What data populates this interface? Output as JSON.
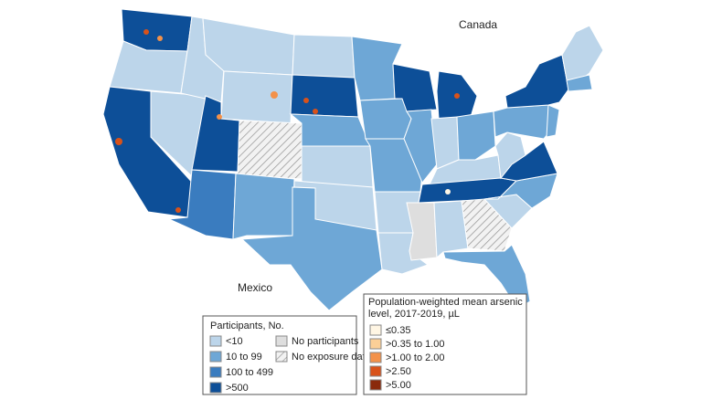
{
  "map": {
    "labels": {
      "canada": "Canada",
      "mexico": "Mexico"
    },
    "participants_legend": {
      "title": "Participants, No.",
      "items": [
        {
          "label": "<10",
          "color": "#bcd5ea"
        },
        {
          "label": "10 to 99",
          "color": "#6ea7d6"
        },
        {
          "label": "100 to 499",
          "color": "#3a7cbf"
        },
        {
          "label": ">500",
          "color": "#0d4f98"
        },
        {
          "label": "No participants",
          "color": "#dedede"
        },
        {
          "label": "No exposure data",
          "color": "#ffffff"
        }
      ]
    },
    "arsenic_legend": {
      "title": "Population-weighted mean arsenic level, 2017-2019, µL",
      "items": [
        {
          "label": "≤0.35",
          "color": "#fff6e4"
        },
        {
          "label": ">0.35 to 1.00",
          "color": "#fbcf97"
        },
        {
          "label": ">1.00 to 2.00",
          "color": "#f39149"
        },
        {
          "label": ">2.50",
          "color": "#d8521a"
        },
        {
          "label": ">5.00",
          "color": "#8a2a0c"
        }
      ]
    }
  }
}
